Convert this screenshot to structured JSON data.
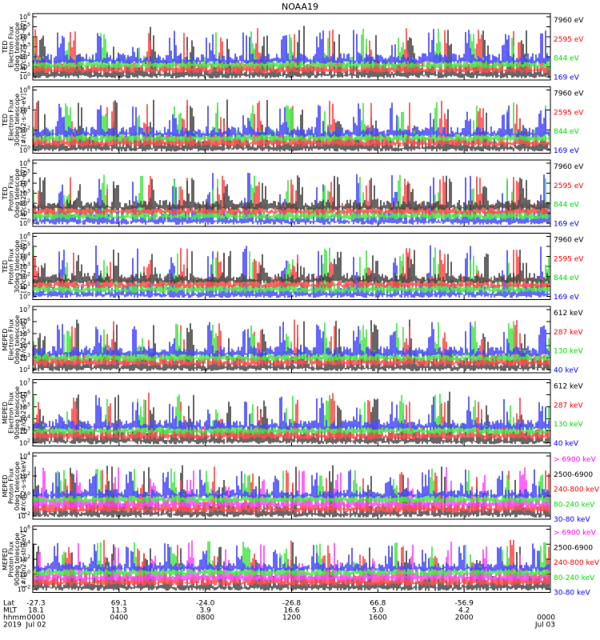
{
  "chart_data": {
    "type": "line",
    "title": "NOAA19",
    "x_start": "2019-07-02 00:00",
    "x_end": "2019-07-03 00:00",
    "panels": [
      {
        "ylabel": [
          "TED",
          "Electron Flux",
          "0deg telescope",
          "[#/cm2-s-str-eV]"
        ],
        "yticks": [
          "10^6",
          "10^5",
          "10^4",
          "10^3",
          "10^2",
          "10^1",
          "10^0"
        ],
        "legend": [
          {
            "name": "7960 eV",
            "color": "#000000"
          },
          {
            "name": "2595 eV",
            "color": "#ff0000"
          },
          {
            "name": "844 eV",
            "color": "#00dd00"
          },
          {
            "name": "169 eV",
            "color": "#0000ff"
          }
        ]
      },
      {
        "ylabel": [
          "TED",
          "Electron Flux",
          "30deg telescope",
          "[#/cm2-s-str-eV]"
        ],
        "yticks": [
          "10^6",
          "10^4",
          "10^2",
          "10^0"
        ],
        "legend": [
          {
            "name": "7960 eV",
            "color": "#000000"
          },
          {
            "name": "2595 eV",
            "color": "#ff0000"
          },
          {
            "name": "844 eV",
            "color": "#00dd00"
          },
          {
            "name": "169 eV",
            "color": "#0000ff"
          }
        ]
      },
      {
        "ylabel": [
          "TED",
          "Proton Flux",
          "0deg telescope",
          "[#/cm2-s-str-eV]"
        ],
        "yticks": [
          "10^6",
          "10^5",
          "10^4",
          "10^3",
          "10^2",
          "10^1",
          "10^0"
        ],
        "legend": [
          {
            "name": "7960 eV",
            "color": "#000000"
          },
          {
            "name": "2595 eV",
            "color": "#ff0000"
          },
          {
            "name": "844 eV",
            "color": "#00dd00"
          },
          {
            "name": "169 eV",
            "color": "#0000ff"
          }
        ]
      },
      {
        "ylabel": [
          "TED",
          "Proton Flux",
          "30deg telescope",
          "[#/cm2-s-str-eV]"
        ],
        "yticks": [
          "10^6",
          "10^5",
          "10^4",
          "10^3",
          "10^2",
          "10^1",
          "10^0"
        ],
        "legend": [
          {
            "name": "7960 eV",
            "color": "#000000"
          },
          {
            "name": "2595 eV",
            "color": "#ff0000"
          },
          {
            "name": "844 eV",
            "color": "#00dd00"
          },
          {
            "name": "169 eV",
            "color": "#0000ff"
          }
        ]
      },
      {
        "ylabel": [
          "MEPED",
          "Electron Flux",
          "0deg telescope",
          "[#/cm2-s-str]"
        ],
        "yticks": [
          "10^7",
          "10^6",
          "10^5",
          "10^4",
          "10^3",
          "10^2"
        ],
        "legend": [
          {
            "name": "612 keV",
            "color": "#000000"
          },
          {
            "name": "287 keV",
            "color": "#ff0000"
          },
          {
            "name": "130 keV",
            "color": "#00dd00"
          },
          {
            "name": "40 keV",
            "color": "#0000ff"
          }
        ]
      },
      {
        "ylabel": [
          "MEPED",
          "Electron Flux",
          "90deg telescope",
          "[#/cm2-s-str]"
        ],
        "yticks": [
          "10^7",
          "10^6",
          "10^5",
          "10^4",
          "10^3",
          "10^2"
        ],
        "legend": [
          {
            "name": "612 keV",
            "color": "#000000"
          },
          {
            "name": "287 keV",
            "color": "#ff0000"
          },
          {
            "name": "130 keV",
            "color": "#00dd00"
          },
          {
            "name": "40 keV",
            "color": "#0000ff"
          }
        ]
      },
      {
        "ylabel": [
          "MEPED",
          "Proton Flux",
          "0deg telescope",
          "[#/cm2-s-str-keV]"
        ],
        "yticks": [
          "10^4",
          "10^2",
          "10^0",
          "10^-2"
        ],
        "legend": [
          {
            "name": "> 6900 keV",
            "color": "#ff00ff"
          },
          {
            "name": "2500-6900",
            "color": "#000000"
          },
          {
            "name": "240-800 keV",
            "color": "#ff0000"
          },
          {
            "name": "80-240 keV",
            "color": "#00dd00"
          },
          {
            "name": "30-80 keV",
            "color": "#0000ff"
          }
        ]
      },
      {
        "ylabel": [
          "MEPED",
          "Proton Flux",
          "90deg telescope",
          "[#/cm2-s-str-keV]"
        ],
        "yticks": [
          "10^6",
          "10^4",
          "10^2",
          "10^0",
          "10^-2"
        ],
        "legend": [
          {
            "name": "> 6900 keV",
            "color": "#ff00ff"
          },
          {
            "name": "2500-6900",
            "color": "#000000"
          },
          {
            "name": "240-800 keV",
            "color": "#ff0000"
          },
          {
            "name": "80-240 keV",
            "color": "#00dd00"
          },
          {
            "name": "30-80 keV",
            "color": "#0000ff"
          }
        ]
      }
    ],
    "x_axis": {
      "row_labels": [
        "Lat",
        "MLT",
        "hhmm",
        "2019"
      ],
      "ticks": [
        {
          "lat": "-27.3",
          "mlt": "18.1",
          "hhmm": "0000",
          "date": "Jul 02"
        },
        {
          "lat": "69.1",
          "mlt": "11.3",
          "hhmm": "0400",
          "date": ""
        },
        {
          "lat": "-24.0",
          "mlt": "3.9",
          "hhmm": "0800",
          "date": ""
        },
        {
          "lat": "-26.8",
          "mlt": "16.6",
          "hhmm": "1200",
          "date": ""
        },
        {
          "lat": "66.8",
          "mlt": "5.0",
          "hhmm": "1600",
          "date": ""
        },
        {
          "lat": "-56.9",
          "mlt": "4.2",
          "hhmm": "2000",
          "date": ""
        },
        {
          "lat": "",
          "mlt": "",
          "hhmm": "0000",
          "date": "Jul 03"
        }
      ]
    }
  }
}
